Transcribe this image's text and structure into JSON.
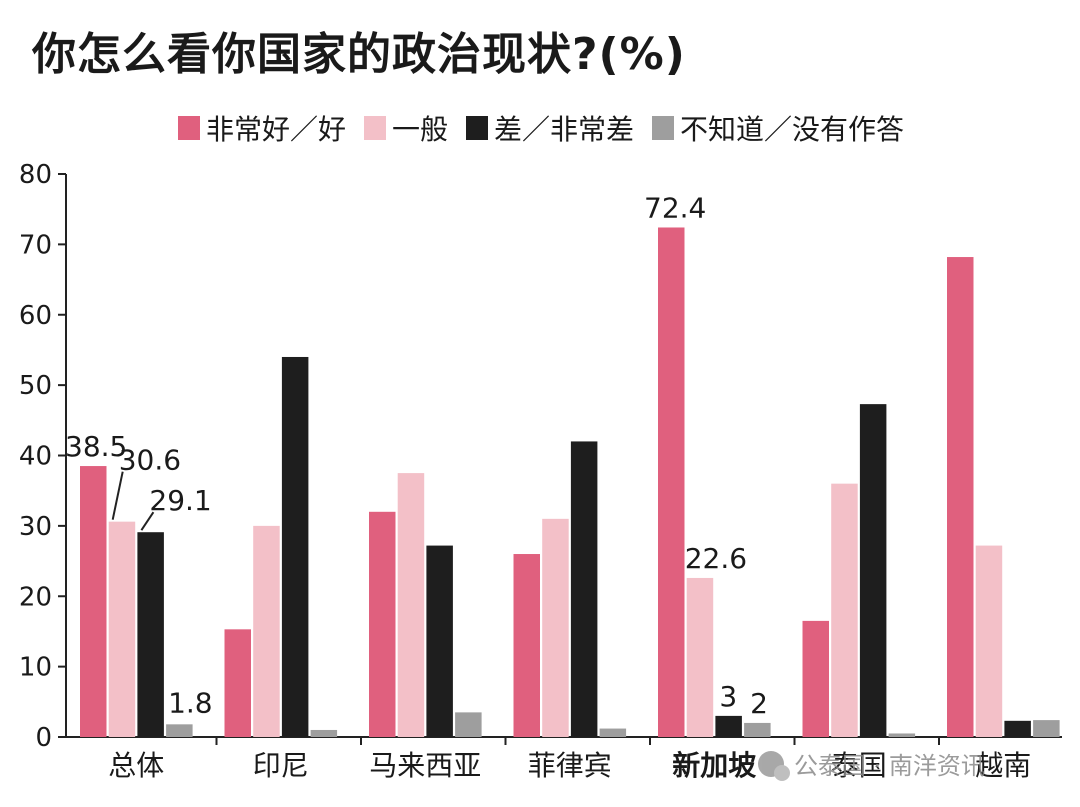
{
  "title": "你怎么看你国家的政治现状?(%)",
  "legend": [
    {
      "label": "非常好／好",
      "color": "#e0607e"
    },
    {
      "label": "一般",
      "color": "#f3c0c8"
    },
    {
      "label": "差／非常差",
      "color": "#1e1e1e"
    },
    {
      "label": "不知道／没有作答",
      "color": "#9e9e9e"
    }
  ],
  "watermark": {
    "text": "公泰国 · 南洋资讯",
    "icon": "wechat-icon"
  },
  "chart_data": {
    "type": "bar",
    "title": "你怎么看你国家的政治现状?(%)",
    "categories": [
      "总体",
      "印尼",
      "马来西亚",
      "菲律宾",
      "新加坡",
      "泰国",
      "越南"
    ],
    "bold_category": "新加坡",
    "ylim": [
      0,
      80
    ],
    "yticks": [
      0,
      10,
      20,
      30,
      40,
      50,
      60,
      70,
      80
    ],
    "grid": false,
    "legend_position": "top",
    "series": [
      {
        "name": "非常好／好",
        "color": "#e0607e",
        "values": [
          38.5,
          15.3,
          32.0,
          26.0,
          72.4,
          16.5,
          68.2
        ]
      },
      {
        "name": "一般",
        "color": "#f3c0c8",
        "values": [
          30.6,
          30.0,
          37.5,
          31.0,
          22.6,
          36.0,
          27.2
        ]
      },
      {
        "name": "差／非常差",
        "color": "#1e1e1e",
        "values": [
          29.1,
          54.0,
          27.2,
          42.0,
          3,
          47.3,
          2.3
        ]
      },
      {
        "name": "不知道／没有作答",
        "color": "#9e9e9e",
        "values": [
          1.8,
          1.0,
          3.5,
          1.2,
          2,
          0.5,
          2.4
        ]
      }
    ],
    "data_labels": [
      {
        "category": "总体",
        "series": "非常好／好",
        "text": "38.5"
      },
      {
        "category": "总体",
        "series": "一般",
        "text": "30.6"
      },
      {
        "category": "总体",
        "series": "差／非常差",
        "text": "29.1"
      },
      {
        "category": "总体",
        "series": "不知道／没有作答",
        "text": "1.8"
      },
      {
        "category": "新加坡",
        "series": "非常好／好",
        "text": "72.4"
      },
      {
        "category": "新加坡",
        "series": "一般",
        "text": "22.6"
      },
      {
        "category": "新加坡",
        "series": "差／非常差",
        "text": "3"
      },
      {
        "category": "新加坡",
        "series": "不知道／没有作答",
        "text": "2"
      }
    ]
  }
}
